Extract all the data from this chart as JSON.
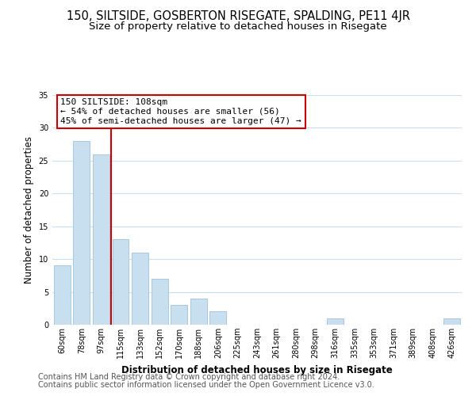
{
  "title": "150, SILTSIDE, GOSBERTON RISEGATE, SPALDING, PE11 4JR",
  "subtitle": "Size of property relative to detached houses in Risegate",
  "xlabel": "Distribution of detached houses by size in Risegate",
  "ylabel": "Number of detached properties",
  "bar_color": "#c8dff0",
  "bar_edgecolor": "#a8c8e0",
  "vline_color": "#cc0000",
  "vline_x": 2.5,
  "categories": [
    "60sqm",
    "78sqm",
    "97sqm",
    "115sqm",
    "133sqm",
    "152sqm",
    "170sqm",
    "188sqm",
    "206sqm",
    "225sqm",
    "243sqm",
    "261sqm",
    "280sqm",
    "298sqm",
    "316sqm",
    "335sqm",
    "353sqm",
    "371sqm",
    "389sqm",
    "408sqm",
    "426sqm"
  ],
  "values": [
    9,
    28,
    26,
    13,
    11,
    7,
    3,
    4,
    2,
    0,
    0,
    0,
    0,
    0,
    1,
    0,
    0,
    0,
    0,
    0,
    1
  ],
  "ylim": [
    0,
    35
  ],
  "yticks": [
    0,
    5,
    10,
    15,
    20,
    25,
    30,
    35
  ],
  "annotation_title": "150 SILTSIDE: 108sqm",
  "annotation_line1": "← 54% of detached houses are smaller (56)",
  "annotation_line2": "45% of semi-detached houses are larger (47) →",
  "annotation_box_facecolor": "#ffffff",
  "annotation_box_edgecolor": "#cc0000",
  "footer1": "Contains HM Land Registry data © Crown copyright and database right 2024.",
  "footer2": "Contains public sector information licensed under the Open Government Licence v3.0.",
  "bg_color": "#ffffff",
  "grid_color": "#ccdff0",
  "title_fontsize": 10.5,
  "subtitle_fontsize": 9.5,
  "tick_fontsize": 7,
  "ylabel_fontsize": 8.5,
  "xlabel_fontsize": 8.5,
  "footer_fontsize": 7,
  "ann_fontsize": 8
}
